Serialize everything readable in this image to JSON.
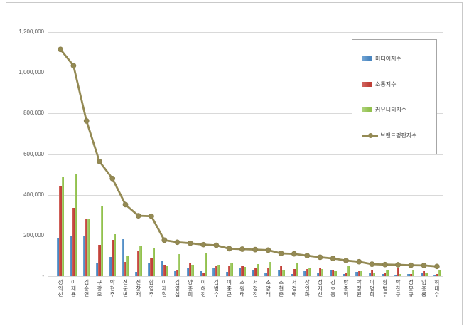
{
  "chart_data": {
    "type": "bar",
    "subtype": "grouped-bars-with-line-overlay",
    "title": "",
    "xlabel": "",
    "ylabel": "",
    "ylim": [
      0,
      1200000
    ],
    "ytick_step": 200000,
    "ytick_labels": [
      "-",
      "200,000",
      "400,000",
      "600,000",
      "800,000",
      "1,000,000",
      "1,200,000"
    ],
    "grid": true,
    "legend_position": "top-right-box",
    "categories": [
      "정의선",
      "이재용",
      "김승연",
      "구광모",
      "박현주",
      "신동빈",
      "신창재",
      "함영주",
      "이재현",
      "김영섭",
      "양종희",
      "이해진",
      "김범수",
      "이중근",
      "조원태",
      "서정진",
      "조양래",
      "조현준",
      "서경배",
      "장인화",
      "정지선",
      "강호동",
      "방준혁",
      "박정원",
      "이명희",
      "황병우",
      "박찬구",
      "정몽규",
      "임종룡",
      "허태수"
    ],
    "series": [
      {
        "name": "미디어지수",
        "type": "bar",
        "color": "#4a86c0",
        "color_light": "#72a5d4",
        "values": [
          190000,
          200000,
          198000,
          64000,
          96000,
          182000,
          22000,
          65000,
          74000,
          24000,
          38000,
          23000,
          43000,
          21000,
          38000,
          28000,
          15000,
          30000,
          12000,
          25000,
          18000,
          33000,
          10000,
          22000,
          13000,
          11000,
          6000,
          12000,
          15000,
          8000
        ]
      },
      {
        "name": "소통지수",
        "type": "bar",
        "color": "#bf4038",
        "color_light": "#d2645e",
        "values": [
          440000,
          335000,
          285000,
          155000,
          179000,
          70000,
          125000,
          90000,
          55000,
          33000,
          68000,
          17000,
          52000,
          52000,
          48000,
          42000,
          42000,
          50000,
          35000,
          35000,
          40000,
          31000,
          16000,
          25000,
          30000,
          17000,
          38000,
          10000,
          23000,
          12000
        ]
      },
      {
        "name": "커뮤니티지수",
        "type": "bar",
        "color": "#92c14e",
        "color_light": "#aed27b",
        "values": [
          485000,
          500000,
          280000,
          345000,
          205000,
          100000,
          150000,
          140000,
          48000,
          110000,
          56000,
          115000,
          57000,
          62000,
          47000,
          61000,
          71000,
          32000,
          63000,
          41000,
          35000,
          23000,
          51000,
          24000,
          16000,
          29000,
          12000,
          32000,
          15000,
          28000
        ]
      },
      {
        "name": "브랜드평판지수",
        "type": "line",
        "color": "#948a54",
        "values": [
          1115000,
          1035000,
          763000,
          564000,
          480000,
          352000,
          297000,
          295000,
          177000,
          167000,
          162000,
          155000,
          152000,
          135000,
          133000,
          131000,
          128000,
          112000,
          110000,
          101000,
          93000,
          87000,
          77000,
          71000,
          59000,
          57000,
          56000,
          54000,
          53000,
          48000
        ]
      }
    ],
    "axis_text_color": "#595959",
    "gridline_color": "#d9d9d9"
  }
}
